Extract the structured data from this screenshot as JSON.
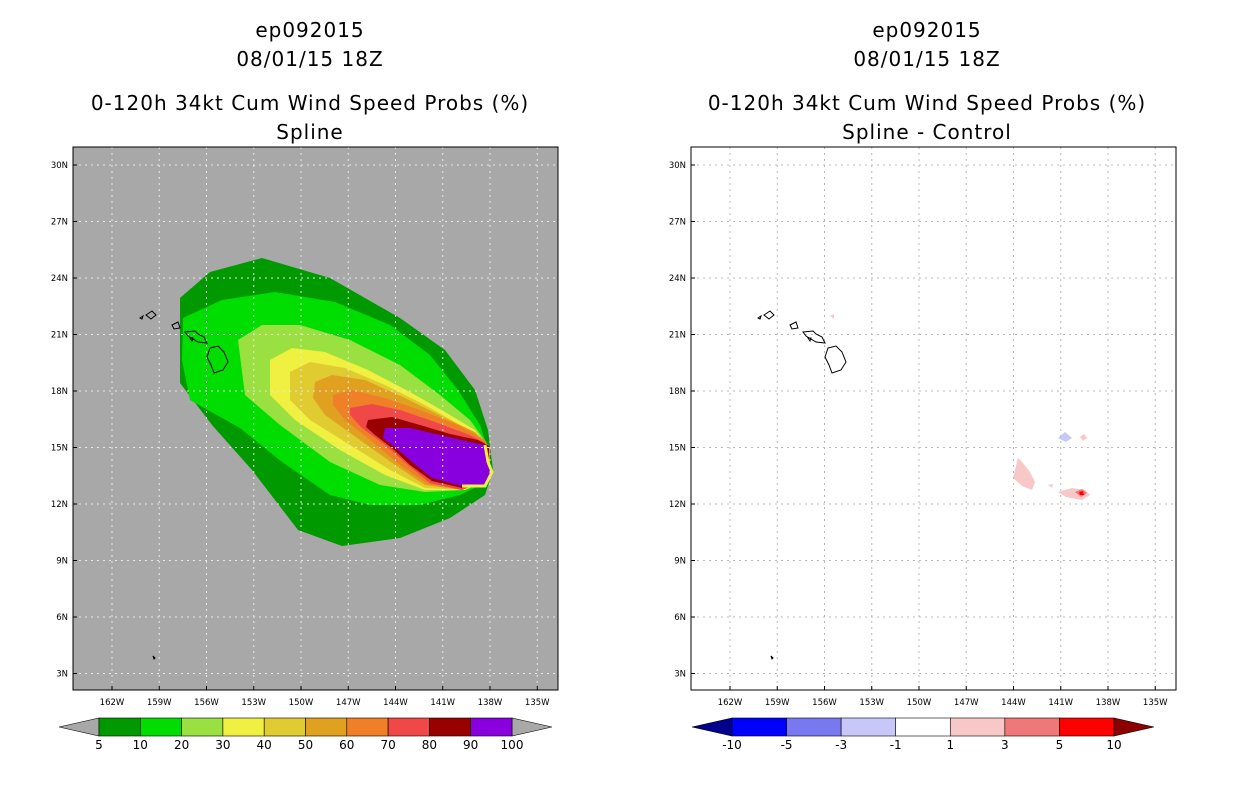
{
  "chart_data": [
    {
      "type": "heatmap",
      "panel": "left",
      "title_lines": [
        "ep092015",
        "08/01/15 18Z",
        "0-120h 34kt Cum Wind Speed Probs (%)",
        "Spline"
      ],
      "x_ticks": [
        "162W",
        "159W",
        "156W",
        "153W",
        "150W",
        "147W",
        "144W",
        "141W",
        "138W",
        "135W"
      ],
      "y_ticks": [
        "30N",
        "27N",
        "24N",
        "21N",
        "18N",
        "15N",
        "12N",
        "9N",
        "6N",
        "3N"
      ],
      "colorbar": {
        "levels": [
          "5",
          "10",
          "20",
          "30",
          "40",
          "50",
          "60",
          "70",
          "80",
          "90",
          "100"
        ],
        "colors": [
          "#009900",
          "#00dd00",
          "#99e040",
          "#f0f040",
          "#e0cc30",
          "#e0a020",
          "#f08028",
          "#f04848",
          "#990000",
          "#8800dd"
        ],
        "under_color": "#a8a8a8",
        "over_color": "#a8a8a8"
      },
      "background": "#a8a8a8"
    },
    {
      "type": "heatmap",
      "panel": "right",
      "title_lines": [
        "ep092015",
        "08/01/15 18Z",
        "0-120h 34kt Cum Wind Speed Probs (%)",
        "Spline - Control"
      ],
      "x_ticks": [
        "162W",
        "159W",
        "156W",
        "153W",
        "150W",
        "147W",
        "144W",
        "141W",
        "138W",
        "135W"
      ],
      "y_ticks": [
        "30N",
        "27N",
        "24N",
        "21N",
        "18N",
        "15N",
        "12N",
        "9N",
        "6N",
        "3N"
      ],
      "colorbar": {
        "levels": [
          "-10",
          "-5",
          "-3",
          "-1",
          "1",
          "3",
          "5",
          "10"
        ],
        "colors": [
          "#0000ff",
          "#7878f0",
          "#c8c8f8",
          "#ffffff",
          "#f8c8c8",
          "#f07878",
          "#ff0000"
        ],
        "under_color": "#00008c",
        "over_color": "#8c0000"
      },
      "background": "#ffffff"
    }
  ]
}
